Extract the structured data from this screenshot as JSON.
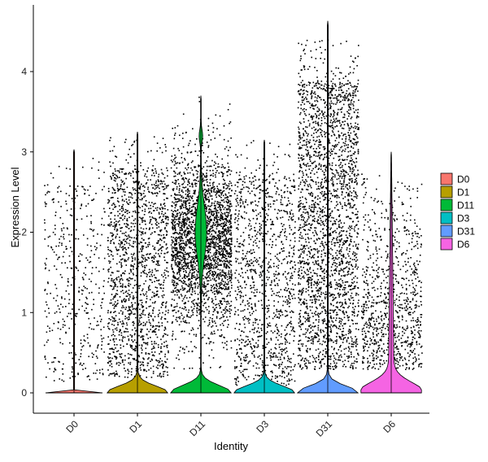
{
  "chart_data": {
    "type": "violin",
    "title": "",
    "xlabel": "Identity",
    "ylabel": "Expression Level",
    "ylim": [
      -0.25,
      4.8
    ],
    "yticks": [
      0,
      1,
      2,
      3,
      4
    ],
    "categories": [
      "D0",
      "D1",
      "D11",
      "D3",
      "D31",
      "D6"
    ],
    "colors": [
      "#F8766D",
      "#B79F00",
      "#00BA38",
      "#00BFC4",
      "#619CFF",
      "#F564E3"
    ],
    "legend_position": "right",
    "grid": false,
    "series": [
      {
        "category": "D0",
        "max": 3.03,
        "points_low": 0.15,
        "points_high": 3.0,
        "point_count": 420,
        "peak_width": 0.15,
        "violin_shape": "flat-bottom"
      },
      {
        "category": "D1",
        "max": 3.25,
        "points_low": 0.2,
        "points_high": 3.2,
        "point_count": 1500,
        "peak_width": 0.55,
        "violin_shape": "bottom-heavy"
      },
      {
        "category": "D11",
        "max": 3.7,
        "points_low": 0.3,
        "points_high": 3.7,
        "point_count": 2600,
        "peak_width": 0.75,
        "violin_shape": "bimodal-top"
      },
      {
        "category": "D3",
        "max": 3.15,
        "points_low": 0.1,
        "points_high": 3.15,
        "point_count": 1100,
        "peak_width": 0.55,
        "violin_shape": "bottom-heavy"
      },
      {
        "category": "D31",
        "max": 4.63,
        "points_low": 0.3,
        "points_high": 4.6,
        "point_count": 2500,
        "peak_width": 0.55,
        "violin_shape": "bottom-heavy"
      },
      {
        "category": "D6",
        "max": 3.0,
        "points_low": 0.1,
        "points_high": 3.0,
        "point_count": 900,
        "peak_width": 0.9,
        "violin_shape": "triangle"
      }
    ]
  }
}
